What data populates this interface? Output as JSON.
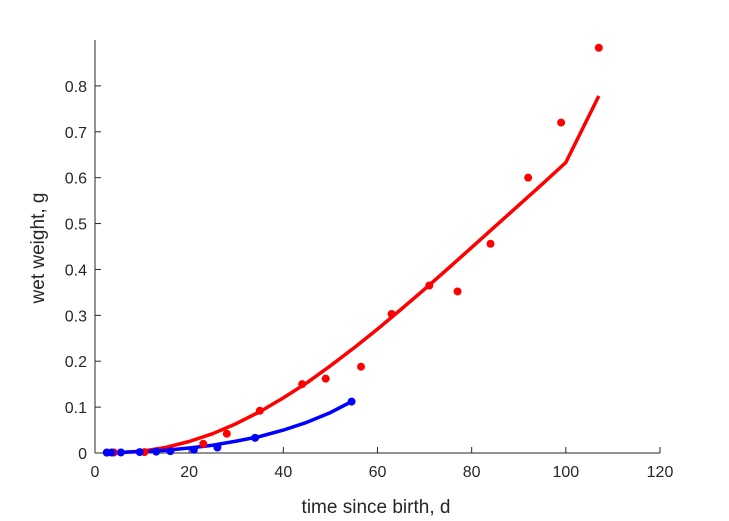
{
  "chart_data": {
    "type": "scatter",
    "title": "",
    "xlabel": "time since birth, d",
    "ylabel": "wet weight, g",
    "xlim": [
      0,
      120
    ],
    "ylim": [
      0,
      0.9
    ],
    "xticks": [
      "0",
      "20",
      "40",
      "60",
      "80",
      "100",
      "120"
    ],
    "yticks": [
      "0",
      "0.1",
      "0.2",
      "0.3",
      "0.4",
      "0.5",
      "0.6",
      "0.7",
      "0.8"
    ],
    "grid": false,
    "legend": "none",
    "series": [
      {
        "color": "#ff0000",
        "points_x": [
          2.5,
          4,
          10.5,
          16,
          23,
          28,
          35,
          44,
          49,
          56.5,
          63,
          71,
          77,
          84,
          92,
          99,
          107
        ],
        "points_y": [
          0.0008,
          0.001,
          0.002,
          0.005,
          0.02,
          0.042,
          0.092,
          0.15,
          0.162,
          0.188,
          0.303,
          0.365,
          0.352,
          0.456,
          0.6,
          0.72,
          0.883
        ],
        "fit_x": [
          2.5,
          5,
          10,
          15,
          20,
          25,
          30,
          35,
          40,
          45,
          50,
          55,
          60,
          65,
          70,
          75,
          80,
          85,
          90,
          95,
          100,
          107
        ],
        "fit_y": [
          0.0005,
          0.001,
          0.004,
          0.012,
          0.025,
          0.042,
          0.064,
          0.09,
          0.12,
          0.153,
          0.19,
          0.229,
          0.27,
          0.313,
          0.357,
          0.402,
          0.448,
          0.494,
          0.54,
          0.586,
          0.633,
          0.778
        ]
      },
      {
        "color": "#0000ff",
        "points_x": [
          2.5,
          3.5,
          5.5,
          9.5,
          13,
          16,
          21,
          26,
          34,
          54.5
        ],
        "points_y": [
          0.001,
          0.001,
          0.0012,
          0.002,
          0.003,
          0.004,
          0.007,
          0.012,
          0.033,
          0.112
        ],
        "fit_x": [
          2.5,
          5,
          10,
          15,
          20,
          25,
          30,
          35,
          40,
          45,
          50,
          54.5
        ],
        "fit_y": [
          0.0005,
          0.001,
          0.003,
          0.006,
          0.011,
          0.017,
          0.026,
          0.036,
          0.05,
          0.067,
          0.088,
          0.112
        ]
      }
    ]
  }
}
